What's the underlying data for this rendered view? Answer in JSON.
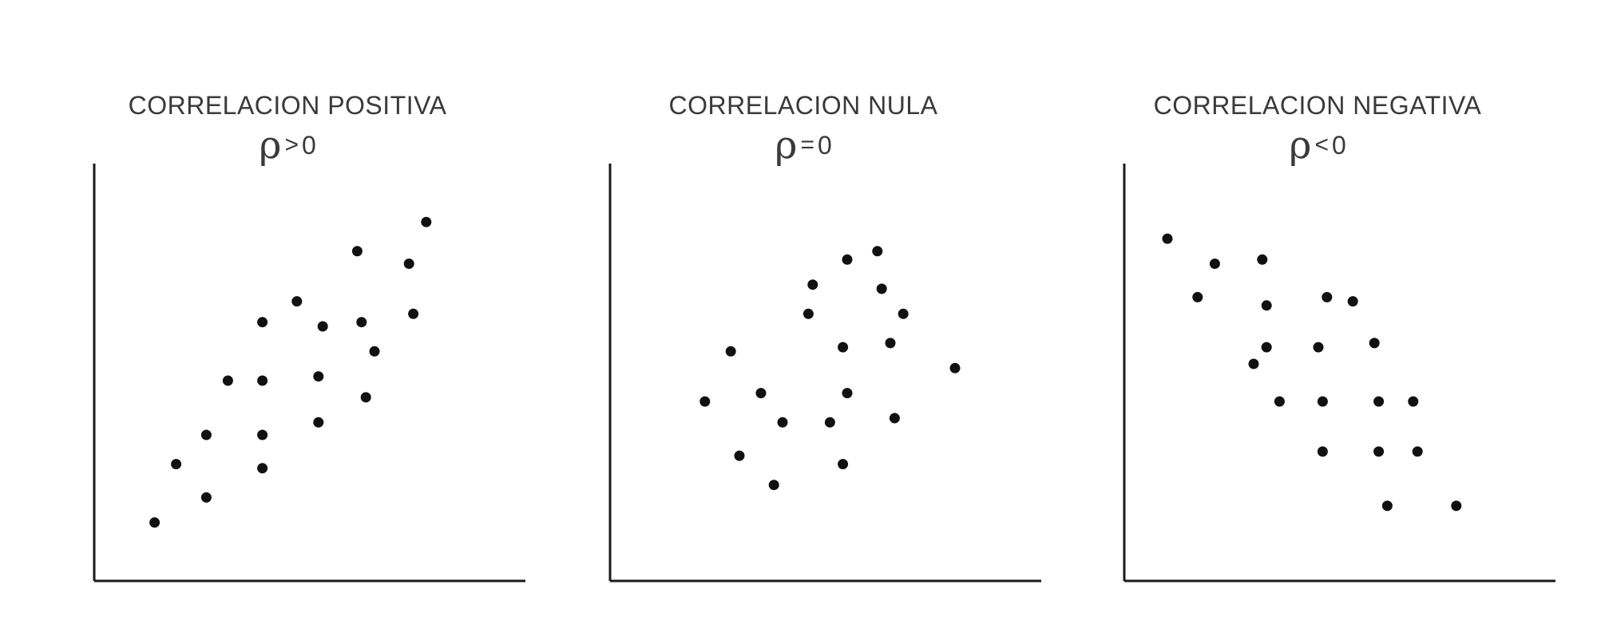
{
  "chart_data": [
    {
      "type": "scatter",
      "title": "CORRELACION POSITIVA",
      "subtitle": {
        "symbol": "ρ",
        "operator": ">",
        "value": "0"
      },
      "xlabel": "",
      "ylabel": "",
      "xlim": [
        0,
        100
      ],
      "ylim": [
        0,
        100
      ],
      "grid": false,
      "x": [
        14,
        19,
        26,
        26,
        31,
        39,
        39,
        39,
        39,
        47,
        52,
        52,
        53,
        61,
        62,
        63,
        65,
        73,
        74,
        77
      ],
      "y": [
        14,
        28,
        20,
        35,
        48,
        27,
        35,
        48,
        62,
        67,
        49,
        38,
        61,
        79,
        62,
        44,
        55,
        76,
        64,
        86
      ]
    },
    {
      "type": "scatter",
      "title": "CORRELACION NULA",
      "subtitle": {
        "symbol": "ρ",
        "operator": "=",
        "value": "0"
      },
      "xlabel": "",
      "ylabel": "",
      "xlim": [
        0,
        100
      ],
      "ylim": [
        0,
        100
      ],
      "grid": false,
      "x": [
        22,
        28,
        30,
        35,
        38,
        40,
        46,
        47,
        51,
        54,
        54,
        55,
        62,
        63,
        65,
        66,
        68,
        80
      ],
      "y": [
        43,
        55,
        30,
        45,
        23,
        38,
        64,
        71,
        38,
        28,
        56,
        45,
        79,
        70,
        57,
        39,
        64,
        51
      ],
      "extra_points": {
        "x": [
          55
        ],
        "y": [
          77
        ]
      }
    },
    {
      "type": "scatter",
      "title": "CORRELACION NEGATIVA",
      "subtitle": {
        "symbol": "ρ",
        "operator": "<",
        "value": "0"
      },
      "xlabel": "",
      "ylabel": "",
      "xlim": [
        0,
        100
      ],
      "ylim": [
        0,
        100
      ],
      "grid": false,
      "x": [
        10,
        17,
        21,
        30,
        32,
        33,
        33,
        36,
        45,
        46,
        46,
        47,
        53,
        58,
        59,
        59,
        61,
        67,
        68,
        77
      ],
      "y": [
        82,
        68,
        76,
        52,
        77,
        66,
        56,
        43,
        56,
        31,
        43,
        68,
        67,
        57,
        31,
        43,
        18,
        43,
        31,
        18
      ]
    }
  ]
}
